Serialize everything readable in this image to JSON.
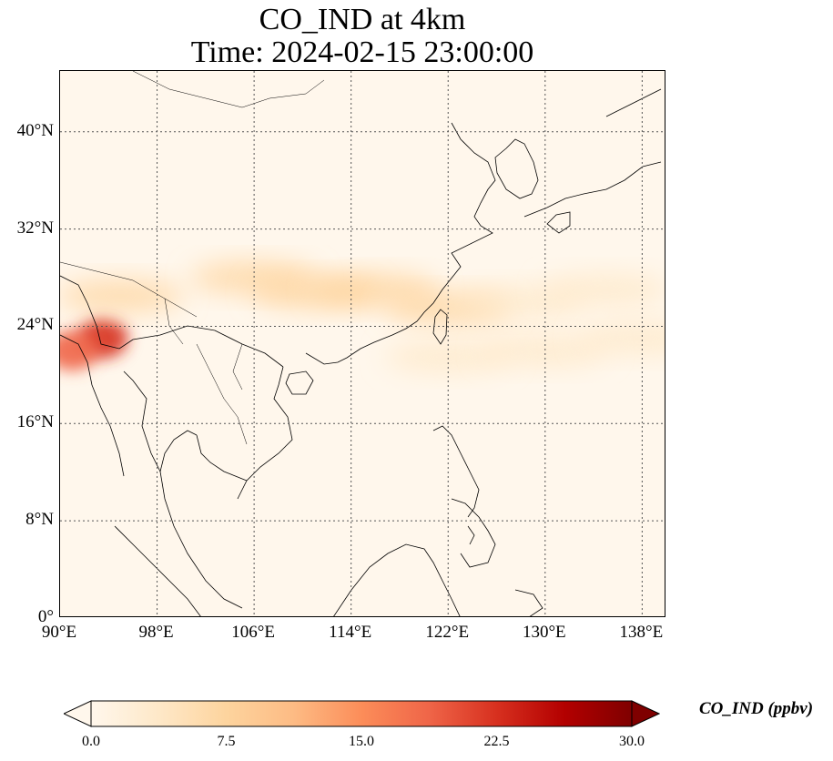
{
  "title": {
    "line1": "CO_IND at 4km",
    "line2": "Time: 2024-02-15 23:00:00"
  },
  "map": {
    "extent": {
      "lon_min": 90,
      "lon_max": 140,
      "lat_min": 0,
      "lat_max": 45
    },
    "gridlines": true,
    "lon_ticks": [
      {
        "value": 90,
        "label": "90°E"
      },
      {
        "value": 98,
        "label": "98°E"
      },
      {
        "value": 106,
        "label": "106°E"
      },
      {
        "value": 114,
        "label": "114°E"
      },
      {
        "value": 122,
        "label": "122°E"
      },
      {
        "value": 130,
        "label": "130°E"
      },
      {
        "value": 138,
        "label": "138°E"
      }
    ],
    "lat_ticks": [
      {
        "value": 0,
        "label": "0°"
      },
      {
        "value": 8,
        "label": "8°N"
      },
      {
        "value": 16,
        "label": "16°N"
      },
      {
        "value": 24,
        "label": "24°N"
      },
      {
        "value": 32,
        "label": "32°N"
      },
      {
        "value": 40,
        "label": "40°N"
      }
    ],
    "plumes": [
      {
        "lon": 93.5,
        "lat": 23.0,
        "value": 24
      },
      {
        "lon": 91.0,
        "lat": 22.0,
        "value": 18
      },
      {
        "lon": 95.0,
        "lat": 26.5,
        "value": 9
      },
      {
        "lon": 106.0,
        "lat": 28.0,
        "value": 6
      },
      {
        "lon": 111.0,
        "lat": 26.8,
        "value": 9
      },
      {
        "lon": 116.0,
        "lat": 27.0,
        "value": 9
      },
      {
        "lon": 122.0,
        "lat": 25.5,
        "value": 6
      },
      {
        "lon": 128.0,
        "lat": 26.0,
        "value": 5
      },
      {
        "lon": 135.0,
        "lat": 27.0,
        "value": 4
      },
      {
        "lon": 122.0,
        "lat": 21.5,
        "value": 5
      },
      {
        "lon": 130.0,
        "lat": 22.0,
        "value": 5
      },
      {
        "lon": 138.0,
        "lat": 23.0,
        "value": 4
      }
    ]
  },
  "colorbar": {
    "label": "CO_IND (ppbv)",
    "min": 0.0,
    "max": 30.0,
    "extend": "both",
    "colormap": "OrRd",
    "colors": [
      "#fff7ec",
      "#fee8c8",
      "#fdd49e",
      "#fdbb84",
      "#fc8d59",
      "#ef6548",
      "#d7301f",
      "#b30000",
      "#7f0000"
    ],
    "ticks": [
      {
        "value": 0.0,
        "label": "0.0"
      },
      {
        "value": 7.5,
        "label": "7.5"
      },
      {
        "value": 15.0,
        "label": "15.0"
      },
      {
        "value": 22.5,
        "label": "22.5"
      },
      {
        "value": 30.0,
        "label": "30.0"
      }
    ]
  }
}
